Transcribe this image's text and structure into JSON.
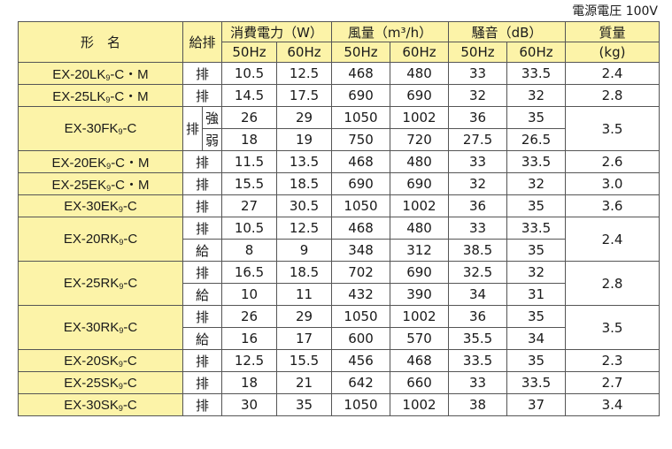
{
  "note": "電源電圧 100V",
  "headers": {
    "model": "形　名",
    "mode": "給排",
    "power": "消費電力（W）",
    "airflow": "風量（m³/h）",
    "noise": "騒音（dB）",
    "mass": "質量",
    "mass_unit": "(kg)",
    "hz50": "50Hz",
    "hz60": "60Hz"
  },
  "rows": [
    {
      "model": "EX-20LK",
      "sub": "9",
      "suffix": "-C・M",
      "mode": "排",
      "p50": "10.5",
      "p60": "12.5",
      "a50": "468",
      "a60": "480",
      "n50": "33",
      "n60": "33.5",
      "mass": "2.4"
    },
    {
      "model": "EX-25LK",
      "sub": "9",
      "suffix": "-C・M",
      "mode": "排",
      "p50": "14.5",
      "p60": "17.5",
      "a50": "690",
      "a60": "690",
      "n50": "32",
      "n60": "32",
      "mass": "2.8"
    },
    {
      "model": "EX-30FK",
      "sub": "9",
      "suffix": "-C",
      "mode": "排",
      "mass": "3.5",
      "sub_rows": [
        {
          "level": "強",
          "p50": "26",
          "p60": "29",
          "a50": "1050",
          "a60": "1002",
          "n50": "36",
          "n60": "35"
        },
        {
          "level": "弱",
          "p50": "18",
          "p60": "19",
          "a50": "750",
          "a60": "720",
          "n50": "27.5",
          "n60": "26.5"
        }
      ]
    },
    {
      "model": "EX-20EK",
      "sub": "9",
      "suffix": "-C・M",
      "mode": "排",
      "p50": "11.5",
      "p60": "13.5",
      "a50": "468",
      "a60": "480",
      "n50": "33",
      "n60": "33.5",
      "mass": "2.6"
    },
    {
      "model": "EX-25EK",
      "sub": "9",
      "suffix": "-C・M",
      "mode": "排",
      "p50": "15.5",
      "p60": "18.5",
      "a50": "690",
      "a60": "690",
      "n50": "32",
      "n60": "32",
      "mass": "3.0"
    },
    {
      "model": "EX-30EK",
      "sub": "9",
      "suffix": "-C",
      "mode": "排",
      "p50": "27",
      "p60": "30.5",
      "a50": "1050",
      "a60": "1002",
      "n50": "36",
      "n60": "35",
      "mass": "3.6"
    },
    {
      "model": "EX-20RK",
      "sub": "9",
      "suffix": "-C",
      "mass": "2.4",
      "sub_rows": [
        {
          "mode": "排",
          "p50": "10.5",
          "p60": "12.5",
          "a50": "468",
          "a60": "480",
          "n50": "33",
          "n60": "33.5"
        },
        {
          "mode": "給",
          "p50": "8",
          "p60": "9",
          "a50": "348",
          "a60": "312",
          "n50": "38.5",
          "n60": "35"
        }
      ]
    },
    {
      "model": "EX-25RK",
      "sub": "9",
      "suffix": "-C",
      "mass": "2.8",
      "sub_rows": [
        {
          "mode": "排",
          "p50": "16.5",
          "p60": "18.5",
          "a50": "702",
          "a60": "690",
          "n50": "32.5",
          "n60": "32"
        },
        {
          "mode": "給",
          "p50": "10",
          "p60": "11",
          "a50": "432",
          "a60": "390",
          "n50": "34",
          "n60": "31"
        }
      ]
    },
    {
      "model": "EX-30RK",
      "sub": "9",
      "suffix": "-C",
      "mass": "3.5",
      "sub_rows": [
        {
          "mode": "排",
          "p50": "26",
          "p60": "29",
          "a50": "1050",
          "a60": "1002",
          "n50": "36",
          "n60": "35"
        },
        {
          "mode": "給",
          "p50": "16",
          "p60": "17",
          "a50": "600",
          "a60": "570",
          "n50": "35.5",
          "n60": "34"
        }
      ]
    },
    {
      "model": "EX-20SK",
      "sub": "9",
      "suffix": "-C",
      "mode": "排",
      "p50": "12.5",
      "p60": "15.5",
      "a50": "456",
      "a60": "468",
      "n50": "33.5",
      "n60": "35",
      "mass": "2.3"
    },
    {
      "model": "EX-25SK",
      "sub": "9",
      "suffix": "-C",
      "mode": "排",
      "p50": "18",
      "p60": "21",
      "a50": "642",
      "a60": "660",
      "n50": "33",
      "n60": "33.5",
      "mass": "2.7"
    },
    {
      "model": "EX-30SK",
      "sub": "9",
      "suffix": "-C",
      "mode": "排",
      "p50": "30",
      "p60": "35",
      "a50": "1050",
      "a60": "1002",
      "n50": "38",
      "n60": "37",
      "mass": "3.4"
    }
  ]
}
